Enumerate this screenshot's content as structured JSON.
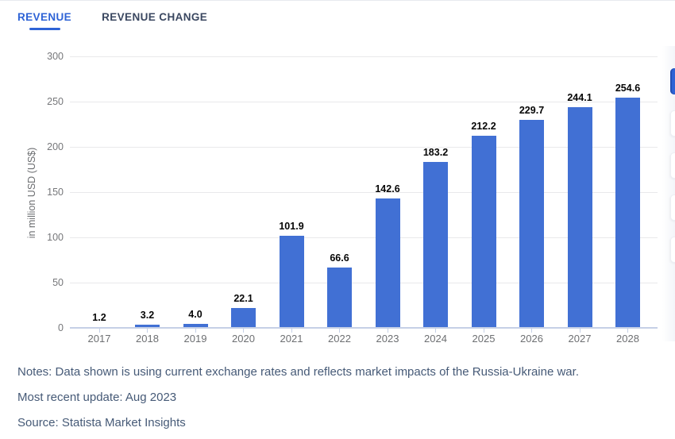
{
  "tabs": [
    {
      "label": "REVENUE",
      "active": true
    },
    {
      "label": "REVENUE CHANGE",
      "active": false
    }
  ],
  "chart_data": {
    "type": "bar",
    "title": "",
    "ylabel": "in million USD (US$)",
    "categories": [
      "2017",
      "2018",
      "2019",
      "2020",
      "2021",
      "2022",
      "2023",
      "2024",
      "2025",
      "2026",
      "2027",
      "2028"
    ],
    "values": [
      1.2,
      3.2,
      4.0,
      22.1,
      101.9,
      66.6,
      142.6,
      183.2,
      212.2,
      229.7,
      244.1,
      254.6
    ],
    "ylim": [
      0,
      300
    ],
    "yticks": [
      0,
      50,
      100,
      150,
      200,
      250,
      300
    ],
    "grid": true,
    "legend": "none",
    "value_labels": true,
    "bar_color": "#4170d4"
  },
  "footer": {
    "notes": "Notes: Data shown is using current exchange rates and reflects market impacts of the Russia-Ukraine war.",
    "updated": "Most recent update: Aug 2023",
    "source": "Source: Statista Market Insights"
  },
  "colors": {
    "accent_blue": "#2e63d6",
    "bar_blue": "#4170d4",
    "notes_text": "#465a77",
    "axis_text": "#76777a",
    "gridline": "#e9e9eb",
    "baseline": "#c5d0e6"
  }
}
